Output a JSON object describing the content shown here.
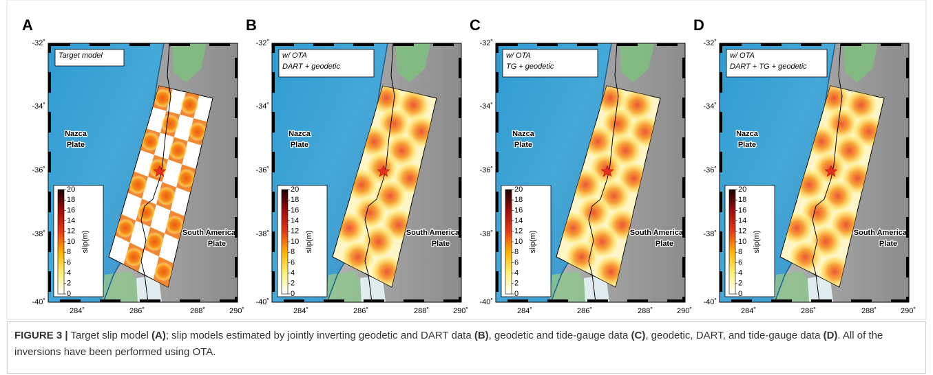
{
  "panels": [
    {
      "label": "A",
      "annotation": [
        "Target model"
      ]
    },
    {
      "label": "B",
      "annotation": [
        "w/ OTA",
        "DART + geodetic"
      ]
    },
    {
      "label": "C",
      "annotation": [
        "w/ OTA",
        "TG + geodetic"
      ]
    },
    {
      "label": "D",
      "annotation": [
        "w/ OTA",
        "DART + TG + geodetic"
      ]
    }
  ],
  "lat_ticks": [
    "-32˚",
    "-34˚",
    "-36˚",
    "-38˚",
    "-40˚"
  ],
  "lon_ticks": [
    "284˚",
    "286˚",
    "288˚",
    "290˚"
  ],
  "plates": {
    "nazca": [
      "Nazca",
      "Plate"
    ],
    "south_america": [
      "South America",
      "Plate"
    ]
  },
  "colorbar": {
    "label": "slip(m)",
    "ticks": [
      20,
      18,
      16,
      14,
      12,
      10,
      8,
      6,
      4,
      2,
      0
    ]
  },
  "caption": {
    "label": "FIGURE 3 |",
    "parts": [
      " Target slip model ",
      "(A)",
      "; slip models estimated by jointly inverting geodetic and DART data ",
      "(B)",
      ", geodetic and tide-gauge data ",
      "(C)",
      ", geodetic, DART, and tide-gauge data ",
      "(D)",
      ". All of the inversions have been performed using OTA."
    ]
  }
}
